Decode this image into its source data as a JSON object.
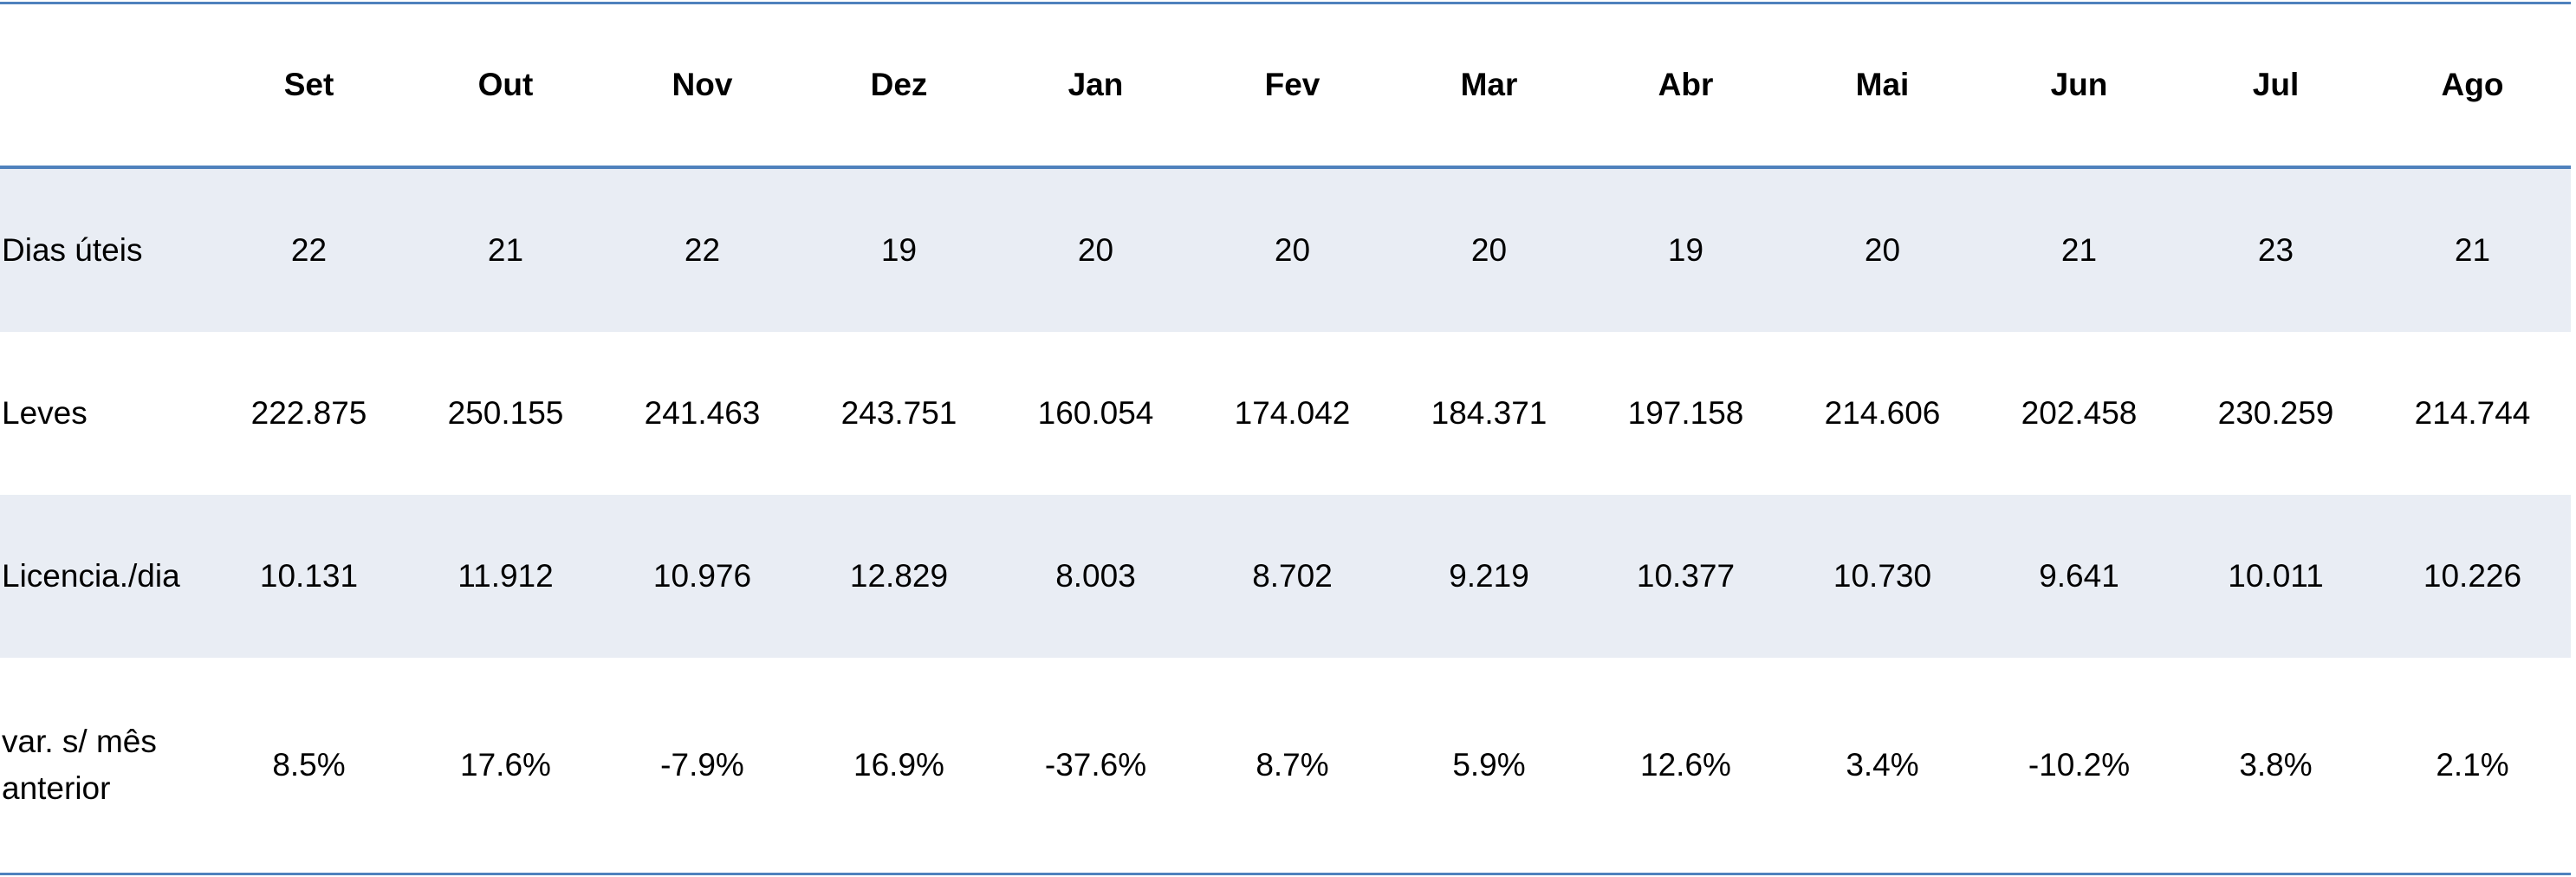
{
  "table": {
    "columns": [
      "Set",
      "Out",
      "Nov",
      "Dez",
      "Jan",
      "Fev",
      "Mar",
      "Abr",
      "Mai",
      "Jun",
      "Jul",
      "Ago"
    ],
    "rows": [
      {
        "label": "Dias úteis",
        "values": [
          "22",
          "21",
          "22",
          "19",
          "20",
          "20",
          "20",
          "19",
          "20",
          "21",
          "23",
          "21"
        ]
      },
      {
        "label": "Leves",
        "values": [
          "222.875",
          "250.155",
          "241.463",
          "243.751",
          "160.054",
          "174.042",
          "184.371",
          "197.158",
          "214.606",
          "202.458",
          "230.259",
          "214.744"
        ]
      },
      {
        "label": "Licencia./dia",
        "values": [
          "10.131",
          "11.912",
          "10.976",
          "12.829",
          "8.003",
          "8.702",
          "9.219",
          "10.377",
          "10.730",
          "9.641",
          "10.011",
          "10.226"
        ]
      },
      {
        "label": "var. s/ mês anterior",
        "values": [
          "8.5%",
          "17.6%",
          "-7.9%",
          "16.9%",
          "-37.6%",
          "8.7%",
          "5.9%",
          "12.6%",
          "3.4%",
          "-10.2%",
          "3.8%",
          "2.1%"
        ]
      }
    ]
  },
  "colors": {
    "border": "#4f81bd",
    "band": "#e9edf4"
  }
}
